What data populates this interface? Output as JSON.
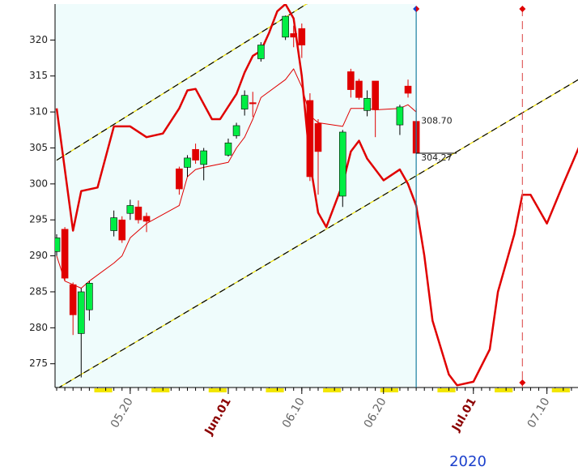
{
  "chart_data": {
    "type": "candlestick",
    "x": [
      "05.11",
      "05.12",
      "05.13",
      "05.14",
      "05.15",
      "05.18",
      "05.19",
      "05.20",
      "05.21",
      "05.22",
      "05.26",
      "05.27",
      "05.28",
      "05.29",
      "06.01",
      "06.02",
      "06.03",
      "06.04",
      "06.05",
      "06.08",
      "06.09",
      "06.10",
      "06.11",
      "06.12",
      "06.15",
      "06.16",
      "06.17",
      "06.18",
      "06.19",
      "06.22",
      "06.23",
      "06.24"
    ],
    "open": [
      290.6,
      293.7,
      286.0,
      279.2,
      282.5,
      293.5,
      295.0,
      295.9,
      296.8,
      295.5,
      302.1,
      302.3,
      304.8,
      302.7,
      304.0,
      306.7,
      310.4,
      311.3,
      317.4,
      320.4,
      320.9,
      321.6,
      311.6,
      308.4,
      298.3,
      315.6,
      314.3,
      310.2,
      314.3,
      308.2,
      313.6,
      308.7
    ],
    "high": [
      293.0,
      294.0,
      286.3,
      285.5,
      286.5,
      296.3,
      295.5,
      297.8,
      297.7,
      296.0,
      302.4,
      304.0,
      305.6,
      305.0,
      306.3,
      308.5,
      313.0,
      312.8,
      319.7,
      323.4,
      322.0,
      322.3,
      312.6,
      309.0,
      307.5,
      316.0,
      314.6,
      313.0,
      314.3,
      311.0,
      314.5,
      310.5
    ],
    "low": [
      290.0,
      286.5,
      279.0,
      273.1,
      281.0,
      292.7,
      291.8,
      295.0,
      294.5,
      293.3,
      298.5,
      301.0,
      302.8,
      300.5,
      303.8,
      306.3,
      309.5,
      309.3,
      317.0,
      320.0,
      319.0,
      317.5,
      300.4,
      298.5,
      296.8,
      312.0,
      311.7,
      309.4,
      306.5,
      306.8,
      312.0,
      304.2
    ],
    "close": [
      292.5,
      286.9,
      281.8,
      285.0,
      286.2,
      295.3,
      292.2,
      297.0,
      295.0,
      294.8,
      299.3,
      303.6,
      303.3,
      304.6,
      305.7,
      308.1,
      312.3,
      311.2,
      319.3,
      323.3,
      320.4,
      319.3,
      301.0,
      304.5,
      307.2,
      313.1,
      312.0,
      311.9,
      310.3,
      310.7,
      312.6,
      304.27
    ],
    "up_color": "#00ee44",
    "down_color": "#e00000",
    "lines": [
      {
        "color": "#e00000",
        "width": 2.5,
        "x": [
          "05.11",
          "05.13",
          "05.14",
          "05.16",
          "05.18",
          "05.20",
          "05.22",
          "05.24",
          "05.26",
          "05.27",
          "05.28",
          "05.30",
          "05.31",
          "06.02",
          "06.03",
          "06.04",
          "06.05",
          "06.06",
          "06.07",
          "06.08",
          "06.09",
          "06.10",
          "06.11",
          "06.12",
          "06.13",
          "06.15",
          "06.16",
          "06.17",
          "06.18",
          "06.20",
          "06.22",
          "06.23",
          "06.24",
          "06.25",
          "06.26",
          "06.28",
          "06.29",
          "07.01",
          "07.03",
          "07.04",
          "07.06",
          "07.07",
          "07.08",
          "07.10",
          "07.12",
          "07.14"
        ],
        "values": [
          310.5,
          293.5,
          299,
          299.5,
          308,
          308,
          306.5,
          307,
          310.5,
          313,
          313.2,
          309,
          309,
          312.5,
          315.5,
          317.8,
          318.5,
          321,
          324,
          325,
          323,
          315,
          303,
          296,
          294,
          300,
          304.5,
          306,
          303.5,
          300.5,
          302,
          300,
          297,
          290,
          281,
          273.5,
          272,
          272.5,
          277,
          285,
          293,
          298.5,
          298.5,
          294.5,
          300,
          305.3
        ]
      },
      {
        "color": "#e00000",
        "width": 1,
        "x": [
          "05.11",
          "05.12",
          "05.13",
          "05.14",
          "05.15",
          "05.18",
          "05.19",
          "05.20",
          "05.21",
          "05.22",
          "05.26",
          "05.27",
          "05.28",
          "05.29",
          "06.01",
          "06.02",
          "06.03",
          "06.04",
          "06.05",
          "06.08",
          "06.09",
          "06.10",
          "06.11",
          "06.12",
          "06.15",
          "06.16",
          "06.17",
          "06.18",
          "06.19",
          "06.22",
          "06.23",
          "06.24"
        ],
        "values": [
          290,
          286.5,
          286,
          285.5,
          286.5,
          289,
          290,
          292.5,
          293.5,
          294.5,
          297,
          301,
          302,
          302.3,
          303,
          305,
          306.5,
          309,
          312,
          314.5,
          316,
          313.5,
          309.5,
          308.5,
          308,
          310.5,
          310.5,
          310.5,
          310.3,
          310.5,
          311,
          310
        ]
      }
    ],
    "channels": [
      {
        "x": [
          "05.11",
          "06.11"
        ],
        "values": [
          303.3,
          325.3
        ]
      },
      {
        "x": [
          "05.11",
          "07.14"
        ],
        "values": [
          271.5,
          314.6
        ]
      }
    ],
    "vlines": [
      {
        "x": "06.24",
        "color": "#1a7fa0",
        "dashed": false,
        "marker": "#1a3fcc"
      },
      {
        "x": "07.07",
        "color": "#e06060",
        "dashed": true,
        "marker": "#e00000"
      }
    ],
    "shade_until": "06.24",
    "shade_color": "#effcfc",
    "annotations": [
      {
        "value": 308.7,
        "label": "308.70"
      },
      {
        "value": 304.27,
        "label": "304.27"
      }
    ],
    "xlim": [
      "05.11",
      "07.14"
    ],
    "xticks": [
      "05.20",
      {
        "value": "06.01",
        "label": "Jun.01"
      },
      "06.10",
      "06.20",
      {
        "value": "07.01",
        "label": "Jul.01"
      },
      "07.10"
    ],
    "year_label": "2020",
    "ylim": [
      271.7,
      325
    ],
    "yticks": [
      275,
      280,
      285,
      290,
      295,
      300,
      305,
      310,
      315,
      320
    ]
  }
}
